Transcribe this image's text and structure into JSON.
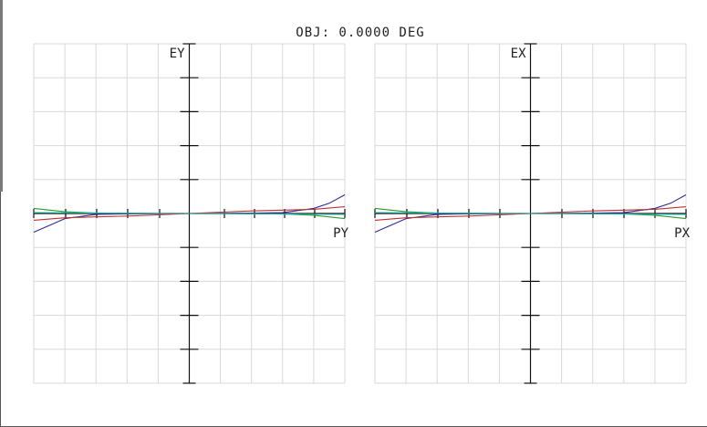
{
  "chart_data": {
    "title": "OBJ: 0.0000 DEG",
    "type": "line",
    "panels": [
      {
        "name": "left",
        "ylabel": "EY",
        "xlabel": "PY",
        "xlim": [
          -1,
          1
        ],
        "ylim": [
          -1,
          1
        ],
        "grid": true,
        "series": [
          {
            "color": "#2a2a9a",
            "x": [
              -1,
              -0.8,
              -0.6,
              -0.4,
              -0.2,
              0,
              0.2,
              0.4,
              0.6,
              0.8,
              0.9,
              1
            ],
            "y": [
              -0.11,
              -0.03,
              -0.005,
              -0.002,
              -0.001,
              0,
              0.001,
              0.002,
              0.005,
              0.03,
              0.06,
              0.11
            ]
          },
          {
            "color": "#c03030",
            "x": [
              -1,
              -0.8,
              -0.6,
              -0.4,
              -0.2,
              0,
              0.2,
              0.4,
              0.6,
              0.8,
              1
            ],
            "y": [
              -0.04,
              -0.025,
              -0.02,
              -0.015,
              -0.008,
              0,
              0.008,
              0.015,
              0.02,
              0.025,
              0.04
            ]
          },
          {
            "color": "#2a9a2a",
            "x": [
              -1,
              -0.8,
              -0.6,
              -0.4,
              -0.2,
              0,
              0.2,
              0.4,
              0.6,
              0.8,
              1
            ],
            "y": [
              0.03,
              0.01,
              0.002,
              0.001,
              0,
              0,
              0,
              -0.001,
              -0.002,
              -0.01,
              -0.03
            ]
          },
          {
            "color": "#20a8a8",
            "x": [
              -1,
              -0.5,
              0,
              0.5,
              1
            ],
            "y": [
              0.005,
              0.002,
              0,
              -0.002,
              -0.005
            ]
          }
        ]
      },
      {
        "name": "right",
        "ylabel": "EX",
        "xlabel": "PX",
        "xlim": [
          -1,
          1
        ],
        "ylim": [
          -1,
          1
        ],
        "grid": true,
        "series": [
          {
            "color": "#2a2a9a",
            "x": [
              -1,
              -0.8,
              -0.6,
              -0.4,
              -0.2,
              0,
              0.2,
              0.4,
              0.6,
              0.8,
              0.9,
              1
            ],
            "y": [
              -0.11,
              -0.03,
              -0.005,
              -0.002,
              -0.001,
              0,
              0.001,
              0.002,
              0.005,
              0.03,
              0.06,
              0.11
            ]
          },
          {
            "color": "#c03030",
            "x": [
              -1,
              -0.8,
              -0.6,
              -0.4,
              -0.2,
              0,
              0.2,
              0.4,
              0.6,
              0.8,
              1
            ],
            "y": [
              -0.04,
              -0.025,
              -0.02,
              -0.015,
              -0.008,
              0,
              0.008,
              0.015,
              0.02,
              0.025,
              0.04
            ]
          },
          {
            "color": "#2a9a2a",
            "x": [
              -1,
              -0.8,
              -0.6,
              -0.4,
              -0.2,
              0,
              0.2,
              0.4,
              0.6,
              0.8,
              1
            ],
            "y": [
              0.03,
              0.01,
              0.002,
              0.001,
              0,
              0,
              0,
              -0.001,
              -0.002,
              -0.01,
              -0.03
            ]
          },
          {
            "color": "#20a8a8",
            "x": [
              -1,
              -0.5,
              0,
              0.5,
              1
            ],
            "y": [
              0.005,
              0.002,
              0,
              -0.002,
              -0.005
            ]
          }
        ]
      }
    ]
  }
}
